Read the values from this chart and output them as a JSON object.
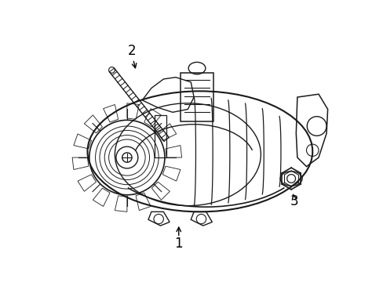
{
  "background_color": "#ffffff",
  "line_color": "#1a1a1a",
  "label_1": "1",
  "label_2": "2",
  "label_3": "3",
  "fig_width": 4.89,
  "fig_height": 3.6,
  "dpi": 100
}
